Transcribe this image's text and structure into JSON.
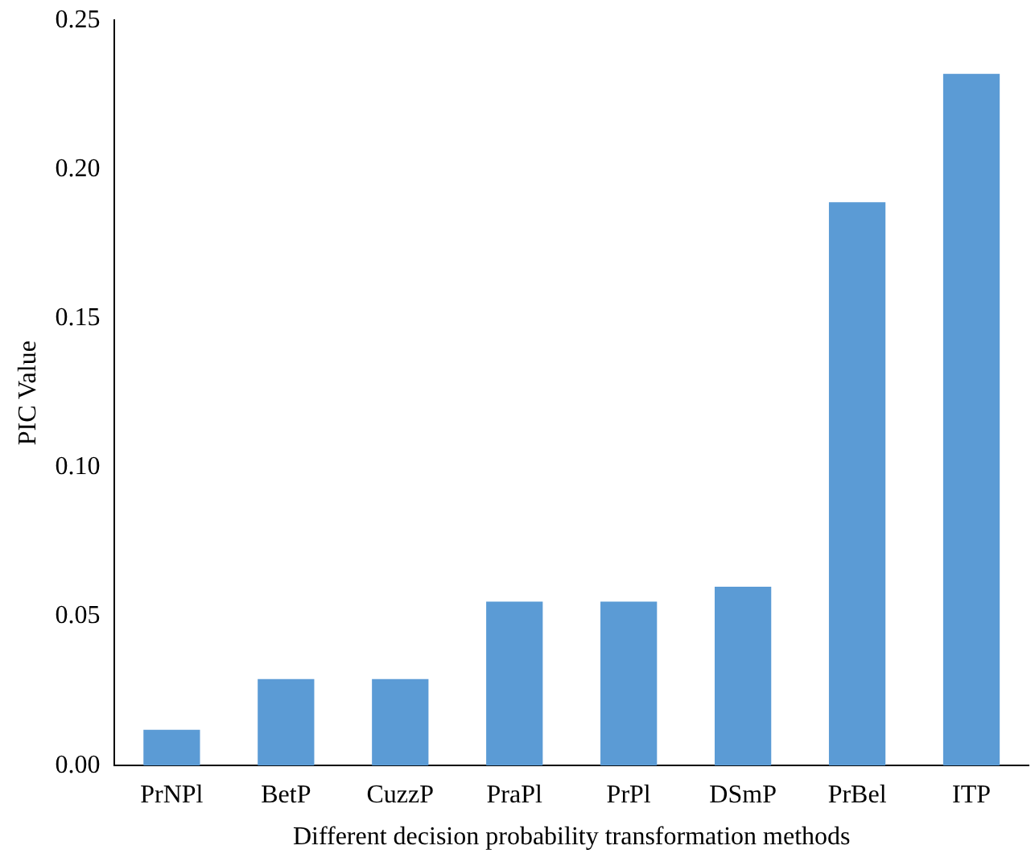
{
  "chart_data": {
    "type": "bar",
    "xlabel": "Different decision probability transformation methods",
    "ylabel": "PIC Value",
    "categories": [
      "PrNPl",
      "BetP",
      "CuzzP",
      "PraPl",
      "PrPl",
      "DSmP",
      "PrBel",
      "ITP"
    ],
    "values": [
      0.012,
      0.029,
      0.029,
      0.055,
      0.055,
      0.06,
      0.189,
      0.232
    ],
    "color": "#5b9bd5",
    "ylim": [
      0,
      0.25
    ],
    "yticks": [
      {
        "value": 0,
        "label": "0.00"
      },
      {
        "value": 0.05,
        "label": "0.05"
      },
      {
        "value": 0.1,
        "label": "0.10"
      },
      {
        "value": 0.15,
        "label": "0.15"
      },
      {
        "value": 0.2,
        "label": "0.20"
      },
      {
        "value": 0.25,
        "label": "0.25"
      }
    ],
    "grid": false
  }
}
